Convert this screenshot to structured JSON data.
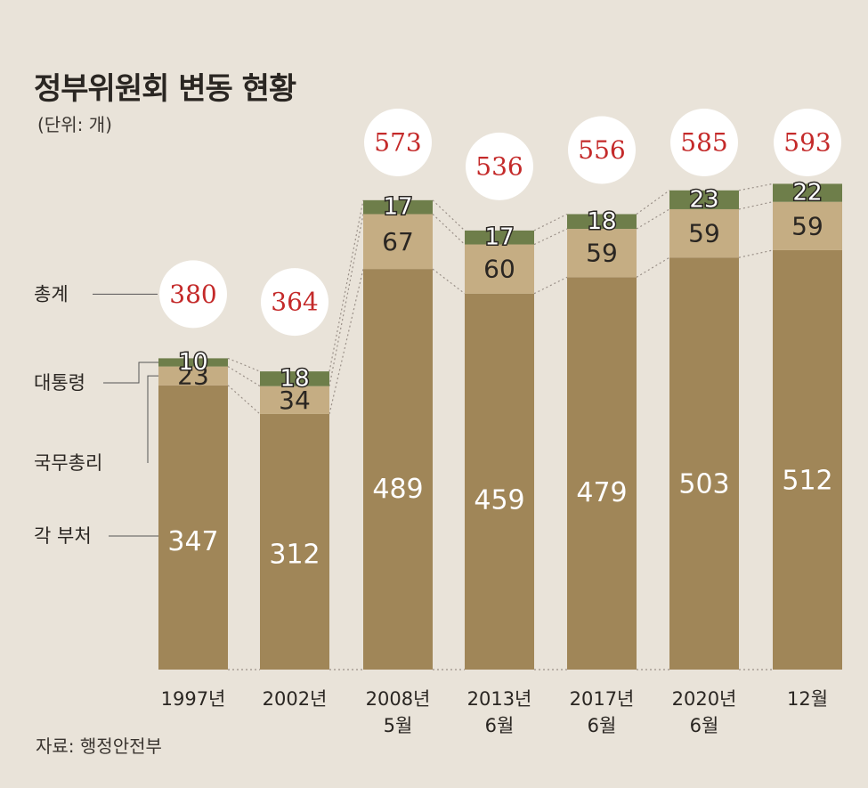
{
  "title": "정부위원회 변동 현황",
  "unit": "(단위: 개)",
  "source": "자료: 행정안전부",
  "chart_data": {
    "type": "bar",
    "stacked": true,
    "categories": [
      [
        "1997년"
      ],
      [
        "2002년"
      ],
      [
        "2008년",
        "5월"
      ],
      [
        "2013년",
        "6월"
      ],
      [
        "2017년",
        "6월"
      ],
      [
        "2020년",
        "6월"
      ],
      [
        "12월"
      ]
    ],
    "series": [
      {
        "name": "각 부처",
        "values": [
          347,
          312,
          489,
          459,
          479,
          503,
          512
        ],
        "color": "#a08658",
        "label_color": "#ffffff"
      },
      {
        "name": "국무총리",
        "values": [
          23,
          34,
          67,
          60,
          59,
          59,
          59
        ],
        "color": "#c5ad83",
        "label_color": "#2a2622"
      },
      {
        "name": "대통령",
        "values": [
          10,
          18,
          17,
          17,
          18,
          23,
          22
        ],
        "color": "#6e7e4a",
        "label_color": "#ffffff"
      }
    ],
    "totals_label": "총계",
    "totals": [
      380,
      364,
      573,
      536,
      556,
      585,
      593
    ],
    "colors": {
      "total_text": "#c42a2a",
      "connector": "#9a9088",
      "bubble": "#ffffff"
    },
    "ylim": [
      0,
      620
    ]
  }
}
